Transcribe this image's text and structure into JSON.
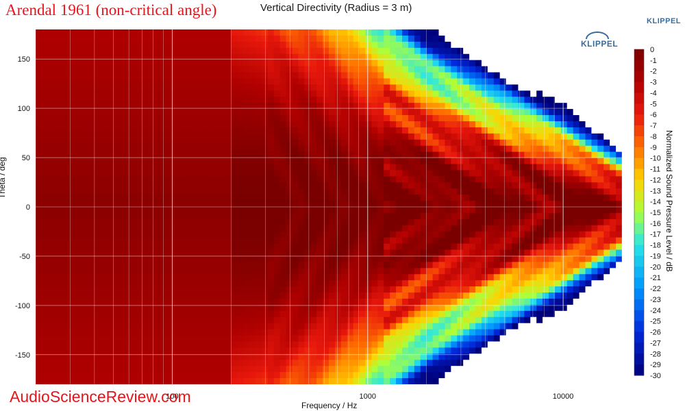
{
  "header": {
    "brand_title": "Arendal 1961 (non-critical angle)",
    "brand_color": "#e8141c",
    "klippel_mark": "KLIPPEL"
  },
  "footer": {
    "watermark": "AudioScienceReview.com"
  },
  "colors": {
    "plot_background": "#7a0000",
    "grid": "#ffffff",
    "empty_region": "#ffffff"
  },
  "chart_data": {
    "type": "heatmap",
    "title": "Vertical Directivity (Radius = 3 m)",
    "xlabel": "Frequency / Hz",
    "ylabel": "Theta / deg",
    "colorbar_label": "Normalized Sound Pressure Level / dB",
    "x_scale": "log",
    "xlim": [
      20,
      20000
    ],
    "ylim": [
      -180,
      180
    ],
    "x_tick_labels": [
      "100",
      "1000",
      "10000"
    ],
    "x_tick_values": [
      100,
      1000,
      10000
    ],
    "y_tick_labels": [
      "150",
      "100",
      "50",
      "0",
      "-50",
      "-100",
      "-150"
    ],
    "y_tick_values": [
      150,
      100,
      50,
      0,
      -50,
      -100,
      -150
    ],
    "colorbar_range": [
      -30,
      0
    ],
    "colorbar_tick_labels": [
      "0",
      "-1",
      "-2",
      "-3",
      "-4",
      "-5",
      "-6",
      "-7",
      "-8",
      "-9",
      "-10",
      "-11",
      "-12",
      "-13",
      "-14",
      "-15",
      "-16",
      "-17",
      "-18",
      "-19",
      "-20",
      "-21",
      "-22",
      "-23",
      "-24",
      "-25",
      "-26",
      "-27",
      "-28",
      "-29",
      "-30"
    ],
    "grid": true,
    "approx_beamwidth_profile": {
      "frequency_hz": [
        20,
        200,
        500,
        1000,
        2000,
        5000,
        10000,
        20000
      ],
      "minus6db_half_angle_deg": [
        180,
        180,
        150,
        110,
        80,
        60,
        45,
        25
      ]
    }
  }
}
